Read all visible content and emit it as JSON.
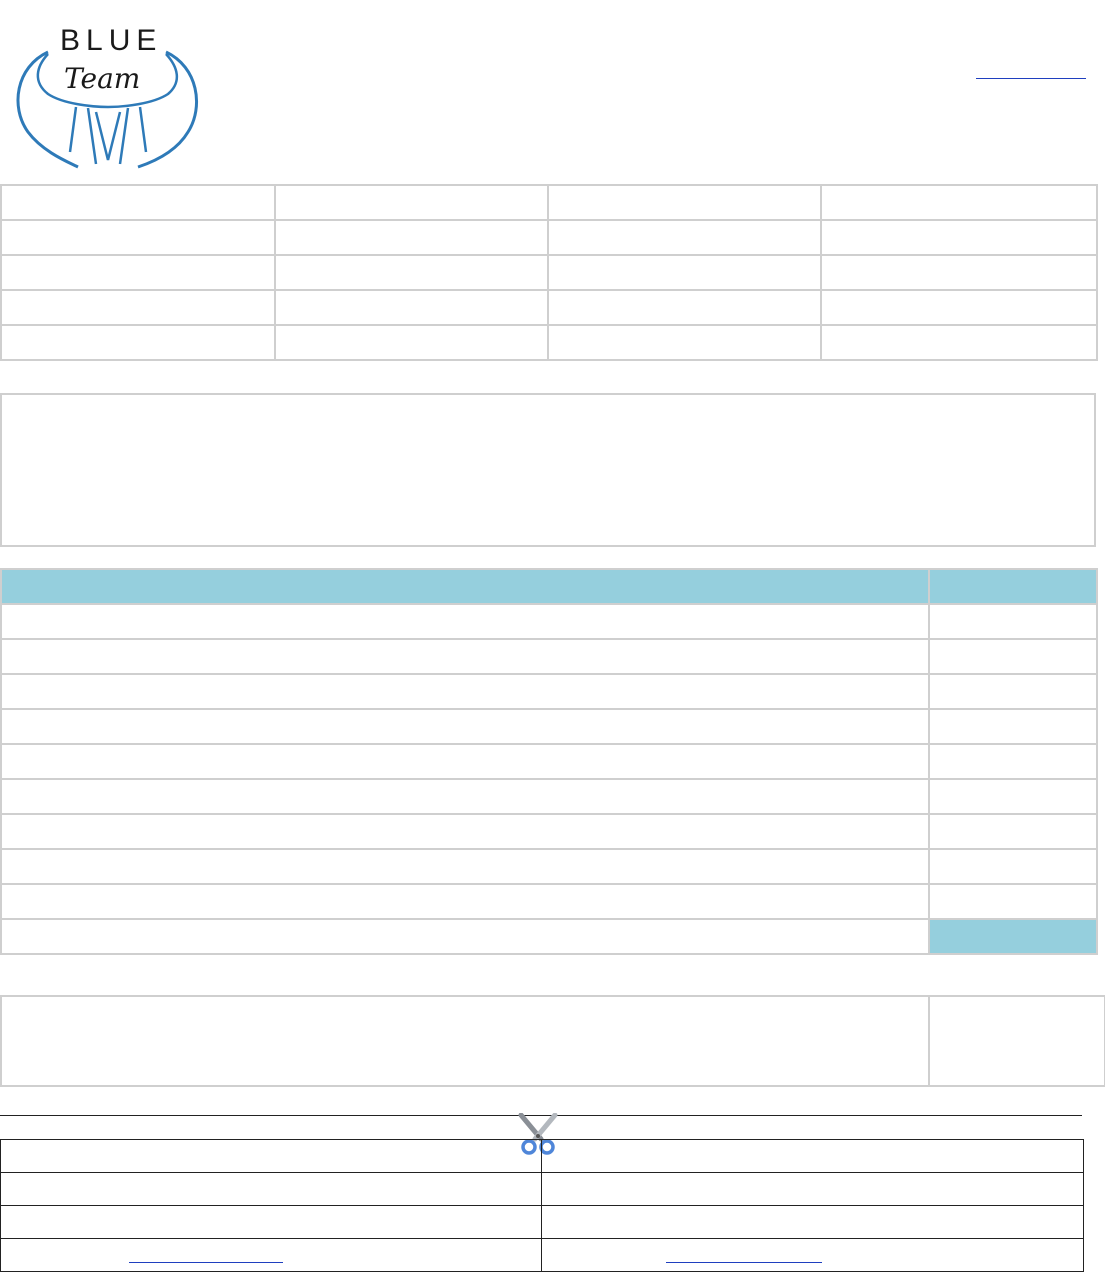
{
  "header": {
    "logo": {
      "text_top": "BLUE",
      "text_bottom": "Team",
      "icon": "shirt-collar-logo"
    },
    "top_right_link": ""
  },
  "info_table": {
    "rows": [
      [
        "",
        "",
        "",
        ""
      ],
      [
        "",
        "",
        "",
        ""
      ],
      [
        "",
        "",
        "",
        ""
      ],
      [
        "",
        "",
        "",
        ""
      ],
      [
        "",
        "",
        "",
        ""
      ]
    ]
  },
  "notes": "",
  "items_table": {
    "header": [
      "",
      ""
    ],
    "rows": [
      [
        "",
        ""
      ],
      [
        "",
        ""
      ],
      [
        "",
        ""
      ],
      [
        "",
        ""
      ],
      [
        "",
        ""
      ],
      [
        "",
        ""
      ],
      [
        "",
        ""
      ],
      [
        "",
        ""
      ],
      [
        "",
        ""
      ]
    ],
    "total": [
      "",
      ""
    ]
  },
  "summary": [
    "",
    ""
  ],
  "cut_icon": "scissors-icon",
  "stub_table": {
    "rows": [
      [
        "",
        ""
      ],
      [
        "",
        ""
      ],
      [
        "",
        ""
      ],
      [
        "",
        ""
      ]
    ],
    "links": [
      "",
      ""
    ]
  },
  "colors": {
    "accent": "#95cfdd",
    "logo_blue": "#2e7ab8",
    "link": "#1f3fbf",
    "border": "#cfcfcf"
  }
}
